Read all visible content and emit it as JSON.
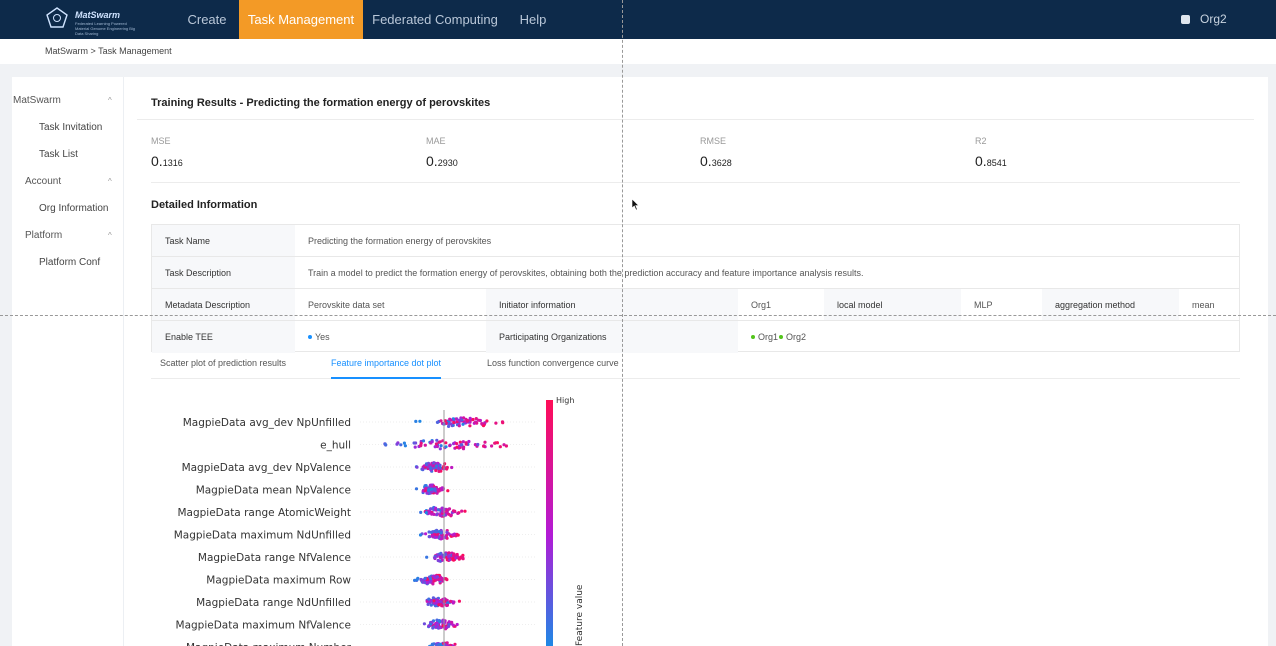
{
  "app": {
    "logo_name": "MatSwarm",
    "logo_subtitle": "Federated Learning Powered Material Genome Engineering Big Data Sharing",
    "user_org": "Org2"
  },
  "nav": [
    "Create",
    "Task Management",
    "Federated Computing",
    "Help"
  ],
  "breadcrumb": "MatSwarm > Task Management",
  "sidebar": {
    "groups": [
      {
        "label": "MatSwarm",
        "items": [
          "Task Invitation",
          "Task List"
        ]
      },
      {
        "label": "Account",
        "items": [
          "Org Information"
        ]
      },
      {
        "label": "Platform",
        "items": [
          "Platform Conf"
        ]
      }
    ]
  },
  "results_title": "Training Results - Predicting the formation energy of perovskites",
  "metrics": [
    {
      "label": "MSE",
      "int": "0.",
      "dec": "1316"
    },
    {
      "label": "MAE",
      "int": "0.",
      "dec": "2930"
    },
    {
      "label": "RMSE",
      "int": "0.",
      "dec": "3628"
    },
    {
      "label": "R2",
      "int": "0.",
      "dec": "8541"
    }
  ],
  "detail_title": "Detailed Information",
  "details": {
    "task_name_label": "Task Name",
    "task_name": "Predicting the formation energy of perovskites",
    "task_desc_label": "Task Description",
    "task_desc": "Train a model to predict the formation energy of perovskites, obtaining both the prediction accuracy and feature importance analysis results.",
    "metadata_label": "Metadata Description",
    "metadata": "Perovskite data set",
    "initiator_label": "Initiator information",
    "initiator": "Org1",
    "local_model_label": "local model",
    "local_model": "MLP",
    "aggregation_label": "aggregation method",
    "aggregation": "mean",
    "tee_label": "Enable TEE",
    "tee": "Yes",
    "participants_label": "Participating Organizations",
    "participants": [
      "Org1",
      "Org2"
    ]
  },
  "tabs": [
    "Scatter plot of prediction results",
    "Feature importance dot plot",
    "Loss function convergence curve"
  ],
  "active_tab": 1,
  "chart_data": {
    "type": "scatter",
    "features": [
      "MagpieData avg_dev NpUnfilled",
      "e_hull",
      "MagpieData avg_dev NpValence",
      "MagpieData mean NpValence",
      "MagpieData range AtomicWeight",
      "MagpieData maximum NdUnfilled",
      "MagpieData range NfValence",
      "MagpieData maximum Row",
      "MagpieData range NdUnfilled",
      "MagpieData maximum NfValence",
      "MagpieData maximum Number"
    ],
    "colorbar_high": "High",
    "colorbar_label": "Feature value",
    "colors": {
      "low": "#1e88e5",
      "high": "#ff0d57"
    }
  },
  "colors": {
    "navbar": "#0d2a4a",
    "active_nav": "#f39a26",
    "accent": "#1890ff",
    "green_dot": "#52c41a"
  }
}
